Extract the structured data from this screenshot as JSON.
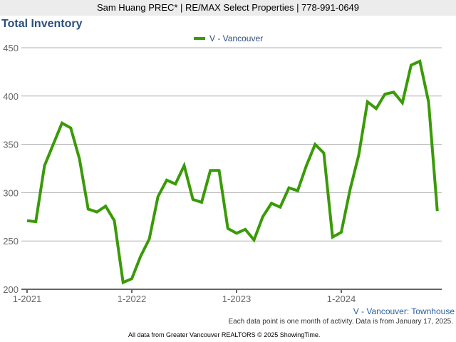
{
  "header": {
    "text": "Sam Huang PREC* | RE/MAX Select Properties | 778-991-0649"
  },
  "title": "Total Inventory",
  "subtitle_right": "V - Vancouver: Townhouse",
  "note": "Each data point is one month of activity. Data is from January 17, 2025.",
  "credit": "All data from Greater Vancouver REALTORS © 2025 ShowingTime.",
  "chart_data": {
    "type": "line",
    "title": "Total Inventory",
    "legend_placement": "top-center",
    "grid": true,
    "ylim": [
      200,
      450
    ],
    "yticks": [
      "200",
      "250",
      "300",
      "350",
      "400",
      "450"
    ],
    "xticks": [
      "1-2021",
      "1-2022",
      "1-2023",
      "1-2024"
    ],
    "series": [
      {
        "name": "V - Vancouver",
        "color": "#3a9a08",
        "x_start": "2021-01",
        "x_end": "2024-12",
        "values": [
          271,
          270,
          328,
          350,
          372,
          367,
          335,
          283,
          280,
          286,
          271,
          207,
          211,
          234,
          252,
          296,
          313,
          309,
          328,
          293,
          290,
          323,
          323,
          263,
          258,
          262,
          251,
          275,
          289,
          285,
          305,
          302,
          328,
          350,
          341,
          254,
          259,
          303,
          339,
          394,
          387,
          402,
          404,
          393,
          432,
          436,
          394,
          281
        ]
      }
    ]
  }
}
